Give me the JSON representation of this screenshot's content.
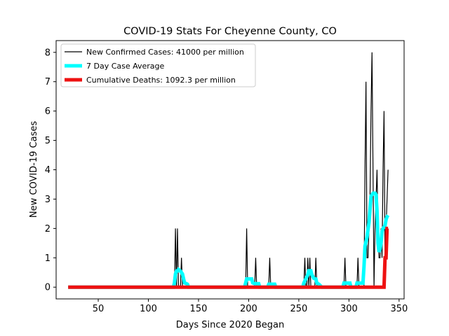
{
  "chart_data": {
    "type": "line",
    "title": "COVID-19 Stats For Cheyenne County, CO",
    "xlabel": "Days Since 2020 Began",
    "ylabel": "New COVID-19 Cases",
    "xlim": [
      8,
      355
    ],
    "ylim": [
      -0.4,
      8.4
    ],
    "xticks": [
      50,
      100,
      150,
      200,
      250,
      300,
      350
    ],
    "yticks": [
      0,
      1,
      2,
      3,
      4,
      5,
      6,
      7,
      8
    ],
    "grid": false,
    "legend_position": "top-left",
    "series": [
      {
        "name": "New Confirmed Cases: 41000 per million",
        "color": "#000000",
        "points": [
          [
            20,
            0
          ],
          [
            126,
            0
          ],
          [
            127,
            2
          ],
          [
            128,
            0
          ],
          [
            129,
            2
          ],
          [
            130,
            0
          ],
          [
            132,
            0
          ],
          [
            133,
            1
          ],
          [
            134,
            0
          ],
          [
            197,
            0
          ],
          [
            198,
            2
          ],
          [
            199,
            0
          ],
          [
            206,
            0
          ],
          [
            207,
            1
          ],
          [
            208,
            0
          ],
          [
            220,
            0
          ],
          [
            221,
            1
          ],
          [
            222,
            0
          ],
          [
            255,
            0
          ],
          [
            256,
            1
          ],
          [
            257,
            0
          ],
          [
            258,
            0
          ],
          [
            259,
            1
          ],
          [
            260,
            0
          ],
          [
            261,
            1
          ],
          [
            262,
            0
          ],
          [
            266,
            0
          ],
          [
            267,
            1
          ],
          [
            268,
            0
          ],
          [
            295,
            0
          ],
          [
            296,
            1
          ],
          [
            297,
            0
          ],
          [
            308,
            0
          ],
          [
            309,
            1
          ],
          [
            310,
            0
          ],
          [
            315,
            0
          ],
          [
            316,
            4
          ],
          [
            317,
            7
          ],
          [
            318,
            1
          ],
          [
            319,
            1
          ],
          [
            320,
            2
          ],
          [
            321,
            3
          ],
          [
            322,
            6
          ],
          [
            323,
            8
          ],
          [
            324,
            4
          ],
          [
            325,
            0
          ],
          [
            326,
            2
          ],
          [
            327,
            3
          ],
          [
            328,
            4
          ],
          [
            329,
            2
          ],
          [
            330,
            1
          ],
          [
            331,
            1
          ],
          [
            332,
            2
          ],
          [
            333,
            1
          ],
          [
            334,
            4
          ],
          [
            335,
            6
          ],
          [
            336,
            1
          ],
          [
            337,
            2
          ],
          [
            338,
            3
          ],
          [
            339,
            4
          ]
        ]
      },
      {
        "name": "7 Day Case Average",
        "color": "#00ffff",
        "points": [
          [
            20,
            0
          ],
          [
            125,
            0
          ],
          [
            126,
            0.15
          ],
          [
            127,
            0.45
          ],
          [
            128,
            0.55
          ],
          [
            129,
            0.55
          ],
          [
            130,
            0.6
          ],
          [
            132,
            0.55
          ],
          [
            134,
            0.45
          ],
          [
            135,
            0.3
          ],
          [
            136,
            0.15
          ],
          [
            138,
            0.12
          ],
          [
            139,
            0.1
          ],
          [
            140,
            0
          ],
          [
            196,
            0
          ],
          [
            197,
            0.15
          ],
          [
            198,
            0.28
          ],
          [
            200,
            0.28
          ],
          [
            203,
            0.28
          ],
          [
            204,
            0.15
          ],
          [
            206,
            0.12
          ],
          [
            210,
            0.12
          ],
          [
            211,
            0
          ],
          [
            219,
            0
          ],
          [
            220,
            0.1
          ],
          [
            226,
            0.1
          ],
          [
            227,
            0
          ],
          [
            254,
            0
          ],
          [
            255,
            0.14
          ],
          [
            257,
            0.28
          ],
          [
            259,
            0.42
          ],
          [
            260,
            0.56
          ],
          [
            261,
            0.56
          ],
          [
            262,
            0.56
          ],
          [
            263,
            0.42
          ],
          [
            265,
            0.3
          ],
          [
            267,
            0.28
          ],
          [
            268,
            0.14
          ],
          [
            270,
            0.1
          ],
          [
            273,
            0
          ],
          [
            294,
            0
          ],
          [
            295,
            0.14
          ],
          [
            301,
            0.14
          ],
          [
            302,
            0
          ],
          [
            307,
            0
          ],
          [
            308,
            0.14
          ],
          [
            314,
            0.14
          ],
          [
            315,
            0.7
          ],
          [
            316,
            1.4
          ],
          [
            318,
            1.7
          ],
          [
            320,
            2.2
          ],
          [
            322,
            3.1
          ],
          [
            324,
            3.2
          ],
          [
            326,
            3.2
          ],
          [
            327,
            3.15
          ],
          [
            328,
            2.6
          ],
          [
            329,
            1.5
          ],
          [
            330,
            1.2
          ],
          [
            331,
            1.3
          ],
          [
            332,
            1.5
          ],
          [
            333,
            1.9
          ],
          [
            334,
            2.0
          ],
          [
            336,
            2.1
          ],
          [
            337,
            2.3
          ],
          [
            338,
            2.4
          ],
          [
            339,
            2.45
          ]
        ]
      },
      {
        "name": "Cumulative Deaths: 1092.3 per million",
        "color": "#ee1111",
        "points": [
          [
            20,
            0
          ],
          [
            334,
            0
          ],
          [
            335,
            0
          ],
          [
            336,
            1
          ],
          [
            337,
            1
          ],
          [
            338,
            2
          ],
          [
            339,
            2
          ]
        ]
      }
    ]
  }
}
